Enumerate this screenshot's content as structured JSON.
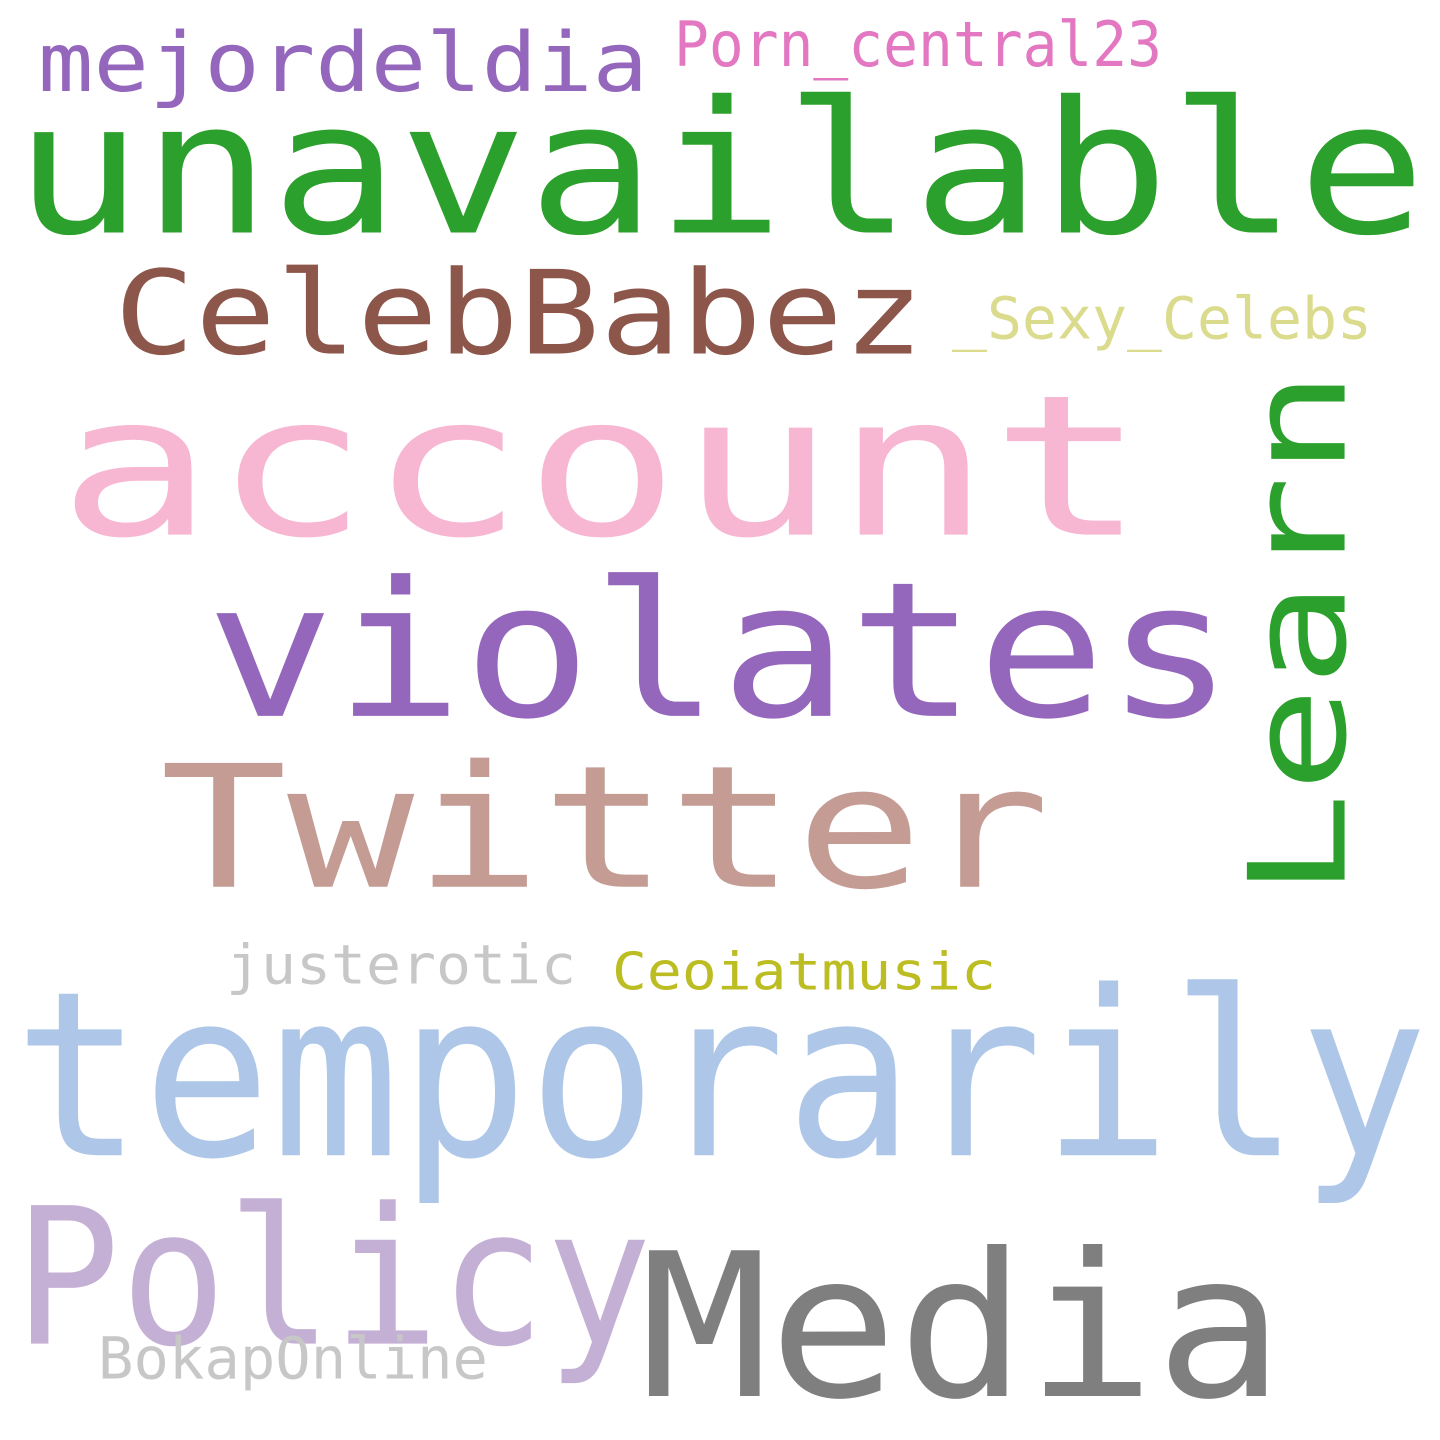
{
  "words": [
    {
      "text": "mejordeldia",
      "color": "#9467bd"
    },
    {
      "text": "Porn_central23",
      "color": "#e377c2"
    },
    {
      "text": "unavailable",
      "color": "#2ca02c"
    },
    {
      "text": "CelebBabez",
      "color": "#8c564b"
    },
    {
      "text": "_Sexy_Celebs",
      "color": "#dbdb8d"
    },
    {
      "text": "account",
      "color": "#f7b6d2"
    },
    {
      "text": "Learn",
      "color": "#2ca02c"
    },
    {
      "text": "violates",
      "color": "#9467bd"
    },
    {
      "text": "Twitter",
      "color": "#c49c94"
    },
    {
      "text": "justerotic",
      "color": "#c7c7c7"
    },
    {
      "text": "Ceoiatmusic",
      "color": "#bcbd22"
    },
    {
      "text": "temporarily",
      "color": "#aec7e8"
    },
    {
      "text": "Policy",
      "color": "#c5b0d5"
    },
    {
      "text": "Media",
      "color": "#7f7f7f"
    },
    {
      "text": "BokapOnline",
      "color": "#c7c7c7"
    }
  ]
}
